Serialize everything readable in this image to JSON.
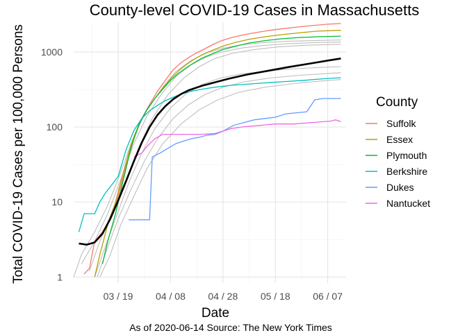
{
  "chart_data": {
    "type": "line",
    "title": "County-level COVID-19 Cases in Massachusetts",
    "xlabel": "Date",
    "ylabel": "Total COVID-19 Cases per 100,000 Persons",
    "caption": "As of 2020-06-14 Source: The New York Times",
    "x_scale": "date",
    "y_scale": "log10",
    "xlim": [
      "2020-03-02",
      "2020-06-14"
    ],
    "ylim": [
      1,
      2500
    ],
    "x_ticks": [
      {
        "date": "2020-03-19",
        "label": "03 / 19"
      },
      {
        "date": "2020-04-08",
        "label": "04 / 08"
      },
      {
        "date": "2020-04-28",
        "label": "04 / 28"
      },
      {
        "date": "2020-05-18",
        "label": "05 / 18"
      },
      {
        "date": "2020-06-07",
        "label": "06 / 07"
      }
    ],
    "y_ticks": [
      {
        "value": 1,
        "label": "1"
      },
      {
        "value": 10,
        "label": "10"
      },
      {
        "value": 100,
        "label": "100"
      },
      {
        "value": 1000,
        "label": "1000"
      }
    ],
    "grid": true,
    "legend": {
      "title": "County",
      "position": "right"
    },
    "series": [
      {
        "name": "Suffolk",
        "color": "#F8766D",
        "points": [
          [
            "2020-03-06",
            1.1
          ],
          [
            "2020-03-08",
            1.3
          ],
          [
            "2020-03-10",
            3
          ],
          [
            "2020-03-13",
            4
          ],
          [
            "2020-03-16",
            6
          ],
          [
            "2020-03-19",
            12
          ],
          [
            "2020-03-22",
            30
          ],
          [
            "2020-03-25",
            70
          ],
          [
            "2020-03-28",
            130
          ],
          [
            "2020-03-31",
            200
          ],
          [
            "2020-04-03",
            300
          ],
          [
            "2020-04-06",
            420
          ],
          [
            "2020-04-09",
            580
          ],
          [
            "2020-04-12",
            720
          ],
          [
            "2020-04-15",
            850
          ],
          [
            "2020-04-18",
            980
          ],
          [
            "2020-04-21",
            1100
          ],
          [
            "2020-04-24",
            1250
          ],
          [
            "2020-04-27",
            1400
          ],
          [
            "2020-05-01",
            1550
          ],
          [
            "2020-05-06",
            1700
          ],
          [
            "2020-05-11",
            1830
          ],
          [
            "2020-05-16",
            1950
          ],
          [
            "2020-05-21",
            2050
          ],
          [
            "2020-05-26",
            2150
          ],
          [
            "2020-06-01",
            2250
          ],
          [
            "2020-06-07",
            2350
          ],
          [
            "2020-06-12",
            2400
          ]
        ]
      },
      {
        "name": "Essex",
        "color": "#B79F00",
        "points": [
          [
            "2020-03-10",
            1.0
          ],
          [
            "2020-03-12",
            2
          ],
          [
            "2020-03-15",
            5
          ],
          [
            "2020-03-18",
            10
          ],
          [
            "2020-03-21",
            25
          ],
          [
            "2020-03-24",
            60
          ],
          [
            "2020-03-27",
            110
          ],
          [
            "2020-03-30",
            170
          ],
          [
            "2020-04-02",
            240
          ],
          [
            "2020-04-05",
            330
          ],
          [
            "2020-04-08",
            440
          ],
          [
            "2020-04-11",
            560
          ],
          [
            "2020-04-14",
            680
          ],
          [
            "2020-04-17",
            800
          ],
          [
            "2020-04-20",
            920
          ],
          [
            "2020-04-24",
            1060
          ],
          [
            "2020-04-28",
            1200
          ],
          [
            "2020-05-03",
            1350
          ],
          [
            "2020-05-08",
            1480
          ],
          [
            "2020-05-14",
            1600
          ],
          [
            "2020-05-20",
            1700
          ],
          [
            "2020-05-27",
            1800
          ],
          [
            "2020-06-03",
            1900
          ],
          [
            "2020-06-12",
            1950
          ]
        ]
      },
      {
        "name": "Plymouth",
        "color": "#00BA38",
        "points": [
          [
            "2020-03-13",
            1.5
          ],
          [
            "2020-03-15",
            3
          ],
          [
            "2020-03-18",
            7
          ],
          [
            "2020-03-21",
            20
          ],
          [
            "2020-03-24",
            55
          ],
          [
            "2020-03-27",
            110
          ],
          [
            "2020-03-30",
            170
          ],
          [
            "2020-04-02",
            240
          ],
          [
            "2020-04-05",
            320
          ],
          [
            "2020-04-08",
            420
          ],
          [
            "2020-04-11",
            520
          ],
          [
            "2020-04-14",
            620
          ],
          [
            "2020-04-17",
            720
          ],
          [
            "2020-04-20",
            830
          ],
          [
            "2020-04-24",
            950
          ],
          [
            "2020-04-28",
            1080
          ],
          [
            "2020-05-03",
            1200
          ],
          [
            "2020-05-08",
            1320
          ],
          [
            "2020-05-14",
            1420
          ],
          [
            "2020-05-20",
            1500
          ],
          [
            "2020-05-27",
            1560
          ],
          [
            "2020-06-03",
            1600
          ],
          [
            "2020-06-12",
            1630
          ]
        ]
      },
      {
        "name": "Berkshire",
        "color": "#00BFC4",
        "points": [
          [
            "2020-03-04",
            4
          ],
          [
            "2020-03-06",
            7
          ],
          [
            "2020-03-10",
            7
          ],
          [
            "2020-03-12",
            10
          ],
          [
            "2020-03-14",
            13
          ],
          [
            "2020-03-16",
            16
          ],
          [
            "2020-03-19",
            22
          ],
          [
            "2020-03-22",
            50
          ],
          [
            "2020-03-25",
            90
          ],
          [
            "2020-03-28",
            130
          ],
          [
            "2020-03-31",
            165
          ],
          [
            "2020-04-03",
            195
          ],
          [
            "2020-04-06",
            225
          ],
          [
            "2020-04-09",
            250
          ],
          [
            "2020-04-12",
            275
          ],
          [
            "2020-04-16",
            300
          ],
          [
            "2020-04-20",
            320
          ],
          [
            "2020-04-25",
            340
          ],
          [
            "2020-05-01",
            360
          ],
          [
            "2020-05-08",
            375
          ],
          [
            "2020-05-15",
            390
          ],
          [
            "2020-05-22",
            405
          ],
          [
            "2020-05-29",
            420
          ],
          [
            "2020-06-05",
            440
          ],
          [
            "2020-06-12",
            455
          ]
        ]
      },
      {
        "name": "Dukes",
        "color": "#619CFF",
        "points": [
          [
            "2020-03-23",
            5.8
          ],
          [
            "2020-03-31",
            5.8
          ],
          [
            "2020-04-01",
            40
          ],
          [
            "2020-04-04",
            45
          ],
          [
            "2020-04-07",
            52
          ],
          [
            "2020-04-10",
            60
          ],
          [
            "2020-04-13",
            65
          ],
          [
            "2020-04-16",
            70
          ],
          [
            "2020-04-19",
            73
          ],
          [
            "2020-04-22",
            78
          ],
          [
            "2020-04-25",
            80
          ],
          [
            "2020-04-28",
            88
          ],
          [
            "2020-05-02",
            105
          ],
          [
            "2020-05-06",
            115
          ],
          [
            "2020-05-10",
            125
          ],
          [
            "2020-05-14",
            130
          ],
          [
            "2020-05-18",
            135
          ],
          [
            "2020-05-22",
            150
          ],
          [
            "2020-05-26",
            155
          ],
          [
            "2020-05-30",
            160
          ],
          [
            "2020-06-02",
            230
          ],
          [
            "2020-06-05",
            240
          ],
          [
            "2020-06-12",
            240
          ]
        ]
      },
      {
        "name": "Nantucket",
        "color": "#F564E3",
        "points": [
          [
            "2020-03-25",
            40
          ],
          [
            "2020-03-28",
            45
          ],
          [
            "2020-03-30",
            55
          ],
          [
            "2020-04-02",
            70
          ],
          [
            "2020-04-05",
            80
          ],
          [
            "2020-04-20",
            80
          ],
          [
            "2020-04-25",
            82
          ],
          [
            "2020-05-01",
            95
          ],
          [
            "2020-05-05",
            100
          ],
          [
            "2020-05-12",
            105
          ],
          [
            "2020-05-18",
            110
          ],
          [
            "2020-05-25",
            110
          ],
          [
            "2020-06-01",
            115
          ],
          [
            "2020-06-08",
            120
          ],
          [
            "2020-06-10",
            125
          ],
          [
            "2020-06-12",
            118
          ]
        ]
      }
    ],
    "background_series": [
      {
        "color": "#BEBEBE",
        "points": [
          [
            "2020-03-02",
            1.0
          ],
          [
            "2020-03-05",
            2
          ],
          [
            "2020-03-10",
            4
          ],
          [
            "2020-03-15",
            9
          ],
          [
            "2020-03-20",
            25
          ],
          [
            "2020-03-25",
            75
          ],
          [
            "2020-03-30",
            170
          ],
          [
            "2020-04-05",
            340
          ],
          [
            "2020-04-10",
            550
          ],
          [
            "2020-04-16",
            780
          ],
          [
            "2020-04-22",
            980
          ],
          [
            "2020-04-28",
            1130
          ],
          [
            "2020-05-05",
            1250
          ],
          [
            "2020-05-13",
            1330
          ],
          [
            "2020-05-22",
            1390
          ],
          [
            "2020-06-01",
            1420
          ],
          [
            "2020-06-12",
            1450
          ]
        ]
      },
      {
        "color": "#BEBEBE",
        "points": [
          [
            "2020-03-05",
            1.5
          ],
          [
            "2020-03-10",
            3
          ],
          [
            "2020-03-15",
            7
          ],
          [
            "2020-03-20",
            20
          ],
          [
            "2020-03-25",
            60
          ],
          [
            "2020-03-30",
            140
          ],
          [
            "2020-04-05",
            290
          ],
          [
            "2020-04-10",
            470
          ],
          [
            "2020-04-16",
            680
          ],
          [
            "2020-04-22",
            870
          ],
          [
            "2020-04-28",
            1010
          ],
          [
            "2020-05-05",
            1130
          ],
          [
            "2020-05-13",
            1220
          ],
          [
            "2020-05-22",
            1290
          ],
          [
            "2020-06-01",
            1330
          ],
          [
            "2020-06-12",
            1360
          ]
        ]
      },
      {
        "color": "#BEBEBE",
        "points": [
          [
            "2020-03-08",
            1.2
          ],
          [
            "2020-03-12",
            3
          ],
          [
            "2020-03-17",
            8
          ],
          [
            "2020-03-22",
            20
          ],
          [
            "2020-03-27",
            55
          ],
          [
            "2020-04-01",
            130
          ],
          [
            "2020-04-07",
            270
          ],
          [
            "2020-04-13",
            450
          ],
          [
            "2020-04-19",
            640
          ],
          [
            "2020-04-25",
            820
          ],
          [
            "2020-05-02",
            970
          ],
          [
            "2020-05-10",
            1080
          ],
          [
            "2020-05-19",
            1170
          ],
          [
            "2020-05-29",
            1230
          ],
          [
            "2020-06-12",
            1270
          ]
        ]
      },
      {
        "color": "#BEBEBE",
        "points": [
          [
            "2020-03-10",
            1.0
          ],
          [
            "2020-03-14",
            2.5
          ],
          [
            "2020-03-18",
            6
          ],
          [
            "2020-03-23",
            18
          ],
          [
            "2020-03-28",
            45
          ],
          [
            "2020-04-02",
            95
          ],
          [
            "2020-04-08",
            180
          ],
          [
            "2020-04-14",
            280
          ],
          [
            "2020-04-20",
            370
          ],
          [
            "2020-04-27",
            450
          ],
          [
            "2020-05-05",
            510
          ],
          [
            "2020-05-15",
            560
          ],
          [
            "2020-05-26",
            600
          ],
          [
            "2020-06-05",
            625
          ],
          [
            "2020-06-12",
            640
          ]
        ]
      },
      {
        "color": "#BEBEBE",
        "points": [
          [
            "2020-03-11",
            1.0
          ],
          [
            "2020-03-15",
            2.5
          ],
          [
            "2020-03-19",
            6
          ],
          [
            "2020-03-24",
            15
          ],
          [
            "2020-03-29",
            35
          ],
          [
            "2020-04-03",
            70
          ],
          [
            "2020-04-09",
            130
          ],
          [
            "2020-04-15",
            200
          ],
          [
            "2020-04-21",
            270
          ],
          [
            "2020-04-28",
            340
          ],
          [
            "2020-05-06",
            400
          ],
          [
            "2020-05-16",
            450
          ],
          [
            "2020-05-27",
            490
          ],
          [
            "2020-06-06",
            515
          ],
          [
            "2020-06-12",
            530
          ]
        ]
      },
      {
        "color": "#BEBEBE",
        "points": [
          [
            "2020-03-12",
            1.0
          ],
          [
            "2020-03-16",
            2
          ],
          [
            "2020-03-20",
            5
          ],
          [
            "2020-03-25",
            12
          ],
          [
            "2020-03-30",
            28
          ],
          [
            "2020-04-05",
            60
          ],
          [
            "2020-04-12",
            110
          ],
          [
            "2020-04-19",
            170
          ],
          [
            "2020-04-26",
            230
          ],
          [
            "2020-05-04",
            290
          ],
          [
            "2020-05-14",
            340
          ],
          [
            "2020-05-25",
            380
          ],
          [
            "2020-06-04",
            410
          ],
          [
            "2020-06-12",
            430
          ]
        ]
      }
    ],
    "trend": {
      "color": "#000000",
      "points": [
        [
          "2020-03-04",
          2.8
        ],
        [
          "2020-03-07",
          2.7
        ],
        [
          "2020-03-10",
          2.9
        ],
        [
          "2020-03-13",
          3.8
        ],
        [
          "2020-03-16",
          6
        ],
        [
          "2020-03-19",
          10.5
        ],
        [
          "2020-03-22",
          19
        ],
        [
          "2020-03-25",
          35
        ],
        [
          "2020-03-28",
          62
        ],
        [
          "2020-03-31",
          100
        ],
        [
          "2020-04-03",
          145
        ],
        [
          "2020-04-06",
          190
        ],
        [
          "2020-04-09",
          235
        ],
        [
          "2020-04-12",
          275
        ],
        [
          "2020-04-15",
          310
        ],
        [
          "2020-04-20",
          355
        ],
        [
          "2020-04-25",
          395
        ],
        [
          "2020-04-30",
          440
        ],
        [
          "2020-05-07",
          500
        ],
        [
          "2020-05-15",
          560
        ],
        [
          "2020-05-23",
          630
        ],
        [
          "2020-06-01",
          710
        ],
        [
          "2020-06-07",
          770
        ],
        [
          "2020-06-12",
          820
        ]
      ]
    }
  }
}
